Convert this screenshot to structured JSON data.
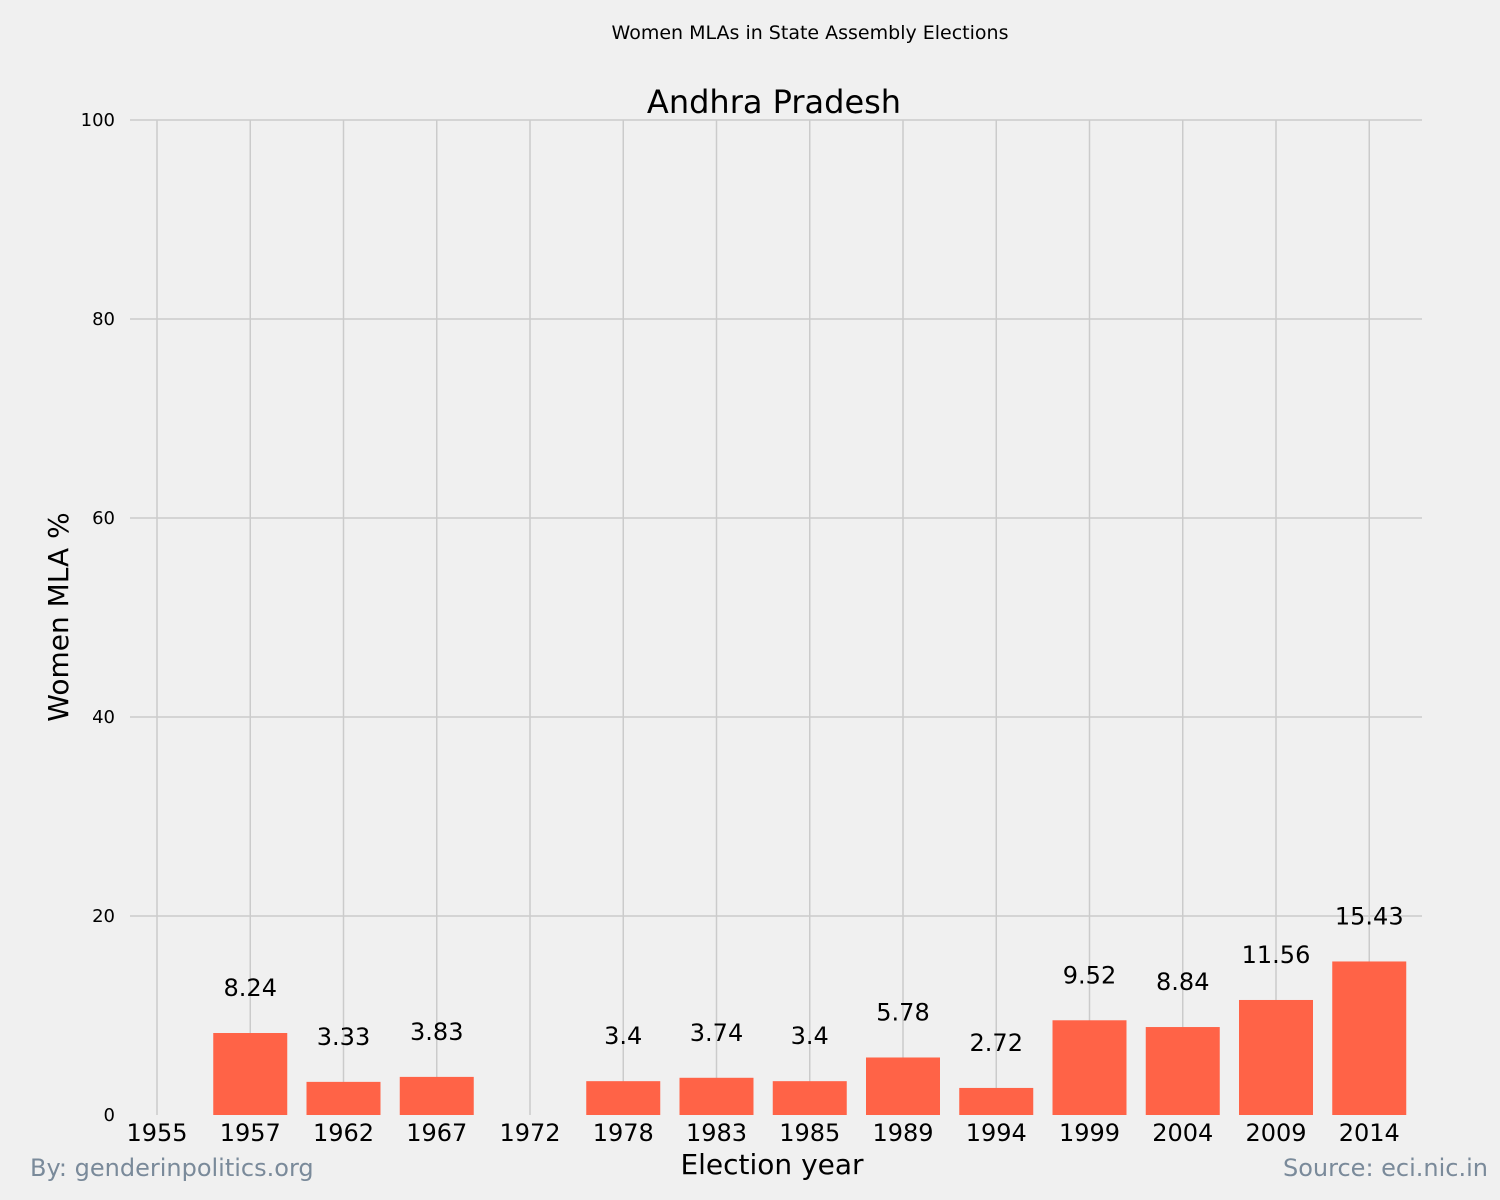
{
  "chart_data": {
    "type": "bar",
    "suptitle": "Women MLAs in State Assembly Elections",
    "title": "Andhra Pradesh",
    "xlabel": "Election year",
    "ylabel": "Women MLA %",
    "ylim": [
      0,
      100
    ],
    "yticks": [
      0,
      20,
      40,
      60,
      80,
      100
    ],
    "categories": [
      "1955",
      "1957",
      "1962",
      "1967",
      "1972",
      "1978",
      "1983",
      "1985",
      "1989",
      "1994",
      "1999",
      "2004",
      "2009",
      "2014"
    ],
    "values": [
      null,
      8.24,
      3.33,
      3.83,
      null,
      3.4,
      3.74,
      3.4,
      5.78,
      2.72,
      9.52,
      8.84,
      11.56,
      15.43
    ],
    "value_labels": [
      "",
      "8.24",
      "3.33",
      "3.83",
      "",
      "3.4",
      "3.74",
      "3.4",
      "5.78",
      "2.72",
      "9.52",
      "8.84",
      "11.56",
      "15.43"
    ],
    "bar_color": "#ff6347",
    "grid": true
  },
  "footer": {
    "left": "By: genderinpolitics.org",
    "right": "Source: eci.nic.in"
  },
  "colors": {
    "background": "#f0f0f0",
    "grid": "#cbcbcb",
    "footer_text": "#7a8a9a"
  }
}
